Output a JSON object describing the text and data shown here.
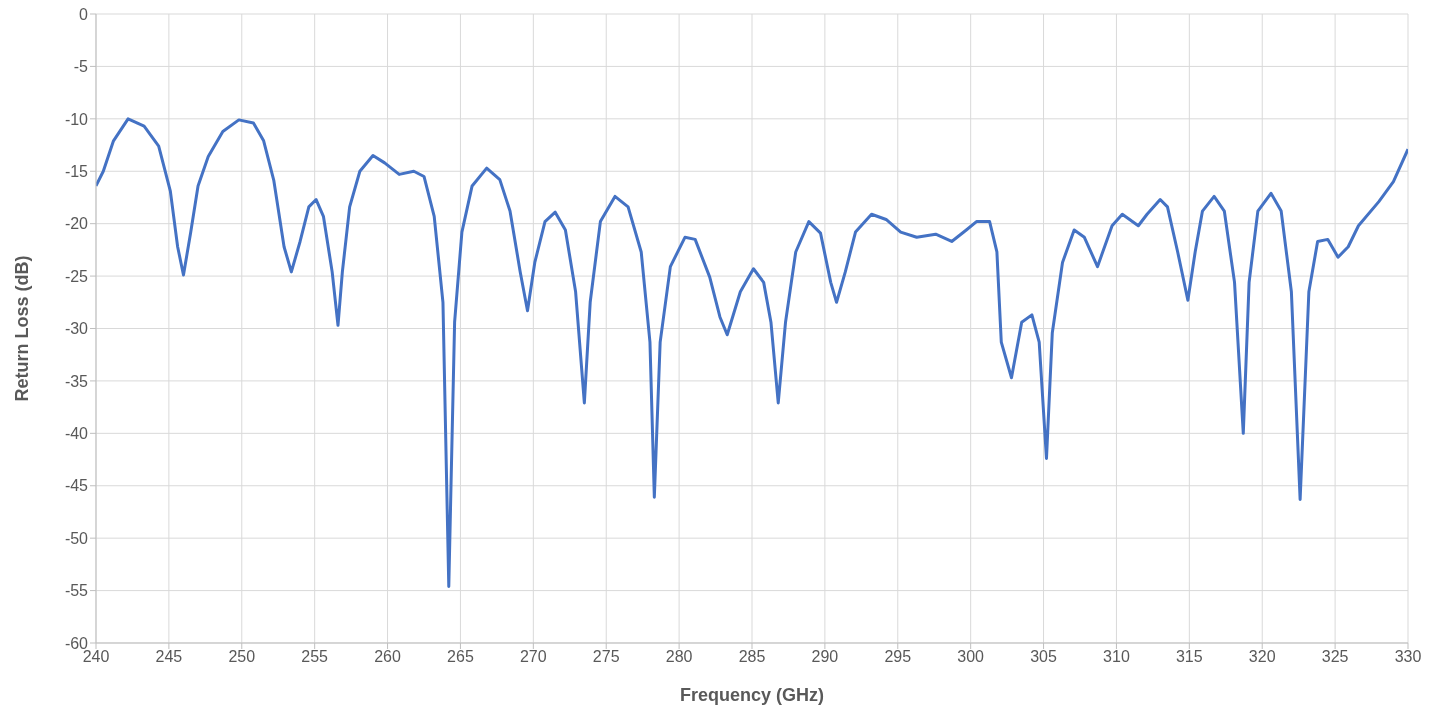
{
  "chart_data": {
    "type": "line",
    "xlabel": "Frequency (GHz)",
    "ylabel": "Return Loss (dB)",
    "xlim": [
      240,
      330
    ],
    "xticks": [
      240,
      245,
      250,
      255,
      260,
      265,
      270,
      275,
      280,
      285,
      290,
      295,
      300,
      305,
      310,
      315,
      320,
      325,
      330
    ],
    "ylim": [
      -60,
      0
    ],
    "yticks": [
      -60,
      -55,
      -50,
      -45,
      -40,
      -35,
      -30,
      -25,
      -20,
      -15,
      -10,
      -5,
      0
    ],
    "grid": true,
    "legend": false,
    "marker": "none",
    "line_style": "solid",
    "series": [
      {
        "color": "#4472c4",
        "x": [
          240,
          240.5,
          241.2,
          242.2,
          243.3,
          244.3,
          245.1,
          245.6,
          246,
          246.5,
          247,
          247.7,
          248.7,
          249.8,
          250.8,
          251.5,
          252.2,
          252.9,
          253.4,
          254,
          254.6,
          255.1,
          255.6,
          256.2,
          256.6,
          256.9,
          257.4,
          258.1,
          259,
          259.8,
          260.8,
          261.8,
          262.5,
          263.2,
          263.8,
          264.2,
          264.6,
          265.1,
          265.8,
          266.8,
          267.7,
          268.4,
          269.1,
          269.6,
          270.1,
          270.8,
          271.5,
          272.2,
          272.9,
          273.5,
          273.9,
          274.6,
          275.6,
          276.5,
          277.4,
          278,
          278.3,
          278.7,
          279.4,
          280.4,
          281.1,
          282.1,
          282.8,
          283.3,
          284.2,
          285.1,
          285.8,
          286.3,
          286.8,
          287.3,
          288,
          288.9,
          289.7,
          290.4,
          290.8,
          291.4,
          292.1,
          293.2,
          294.2,
          295.2,
          296.3,
          297.6,
          298.7,
          299.7,
          300.4,
          301.3,
          301.8,
          302.1,
          302.8,
          303.5,
          304.2,
          304.7,
          305.2,
          305.6,
          306.3,
          307.1,
          307.8,
          308.7,
          309.7,
          310.4,
          311.5,
          312.1,
          313,
          313.5,
          314.2,
          314.9,
          315.4,
          315.9,
          316.7,
          317.4,
          318.1,
          318.7,
          319.1,
          319.7,
          320.6,
          321.3,
          322,
          322.6,
          323.2,
          323.8,
          324.5,
          325.2,
          325.9,
          326.6,
          328,
          329,
          330
        ],
        "values": [
          -16.4,
          -15,
          -12.1,
          -10,
          -10.7,
          -12.6,
          -16.9,
          -22.2,
          -24.9,
          -20.8,
          -16.4,
          -13.6,
          -11.2,
          -10.1,
          -10.4,
          -12.1,
          -15.9,
          -22.2,
          -24.6,
          -21.7,
          -18.4,
          -17.7,
          -19.3,
          -24.6,
          -29.7,
          -24.6,
          -18.4,
          -15,
          -13.5,
          -14.2,
          -15.3,
          -15,
          -15.5,
          -19.3,
          -27.5,
          -54.6,
          -29.4,
          -20.8,
          -16.4,
          -14.7,
          -15.8,
          -18.8,
          -24.6,
          -28.3,
          -23.7,
          -19.8,
          -18.9,
          -20.6,
          -26.5,
          -37.1,
          -27.5,
          -19.8,
          -17.4,
          -18.4,
          -22.7,
          -31.3,
          -46.1,
          -31.3,
          -24.1,
          -21.3,
          -21.5,
          -25.1,
          -28.9,
          -30.6,
          -26.5,
          -24.3,
          -25.6,
          -29.4,
          -37.1,
          -29.4,
          -22.7,
          -19.8,
          -20.9,
          -25.6,
          -27.5,
          -24.6,
          -20.8,
          -19.1,
          -19.6,
          -20.8,
          -21.3,
          -21,
          -21.7,
          -20.6,
          -19.8,
          -19.8,
          -22.7,
          -31.3,
          -34.7,
          -29.4,
          -28.7,
          -31.3,
          -42.4,
          -30.4,
          -23.7,
          -20.6,
          -21.3,
          -24.1,
          -20.2,
          -19.1,
          -20.2,
          -19.1,
          -17.7,
          -18.4,
          -22.7,
          -27.3,
          -22.7,
          -18.8,
          -17.4,
          -18.8,
          -25.6,
          -40,
          -25.6,
          -18.8,
          -17.1,
          -18.8,
          -26.5,
          -46.3,
          -26.5,
          -21.7,
          -21.5,
          -23.2,
          -22.2,
          -20.2,
          -17.9,
          -16,
          -12.9
        ]
      }
    ]
  }
}
